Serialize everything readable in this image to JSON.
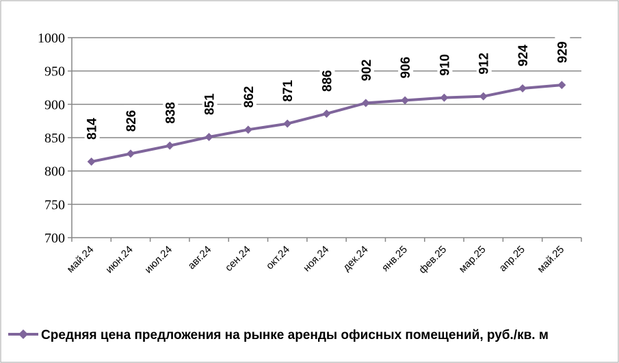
{
  "chart_data": {
    "type": "line",
    "categories": [
      "май.24",
      "июн.24",
      "июл.24",
      "авг.24",
      "сен.24",
      "окт.24",
      "ноя.24",
      "дек.24",
      "янв.25",
      "фев.25",
      "мар.25",
      "апр.25",
      "май.25"
    ],
    "series": [
      {
        "name": "Средняя цена предложения на рынке аренды офисных помещений,  руб./кв. м",
        "values": [
          814,
          826,
          838,
          851,
          862,
          871,
          886,
          902,
          906,
          910,
          912,
          924,
          929
        ],
        "color": "#7f659b"
      }
    ],
    "data_labels": [
      "814",
      "826",
      "838",
      "851",
      "862",
      "871",
      "886",
      "902",
      "906",
      "910",
      "912",
      "924",
      "929"
    ],
    "y_ticks": [
      "700",
      "750",
      "800",
      "850",
      "900",
      "950",
      "1000"
    ],
    "ylim": [
      700,
      1000
    ],
    "grid": true,
    "legend_position": "bottom",
    "marker": "diamond"
  }
}
